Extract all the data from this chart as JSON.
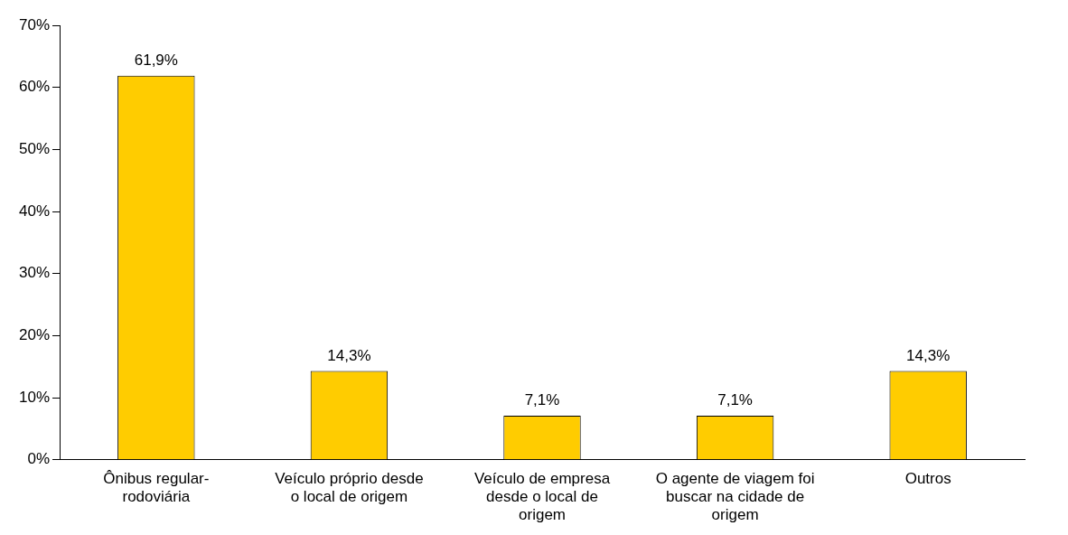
{
  "chart_data": {
    "type": "bar",
    "categories": [
      "Ônibus regular-rodoviária",
      "Veículo próprio desde o local de origem",
      "Veículo de empresa desde o local de origem",
      "O agente de viagem foi buscar na cidade de origem",
      "Outros"
    ],
    "values": [
      61.9,
      14.3,
      7.1,
      7.1,
      14.3
    ],
    "value_labels": [
      "61,9%",
      "14,3%",
      "7,1%",
      "7,1%",
      "14,3%"
    ],
    "color": "#ffcc00",
    "ylim": [
      0,
      70
    ],
    "yticks": [
      {
        "value": 0,
        "label": "0%"
      },
      {
        "value": 10,
        "label": "10%"
      },
      {
        "value": 20,
        "label": "20%"
      },
      {
        "value": 30,
        "label": "30%"
      },
      {
        "value": 40,
        "label": "40%"
      },
      {
        "value": 50,
        "label": "50%"
      },
      {
        "value": 60,
        "label": "60%"
      },
      {
        "value": 70,
        "label": "70%"
      }
    ],
    "grid": false,
    "legend": false
  }
}
